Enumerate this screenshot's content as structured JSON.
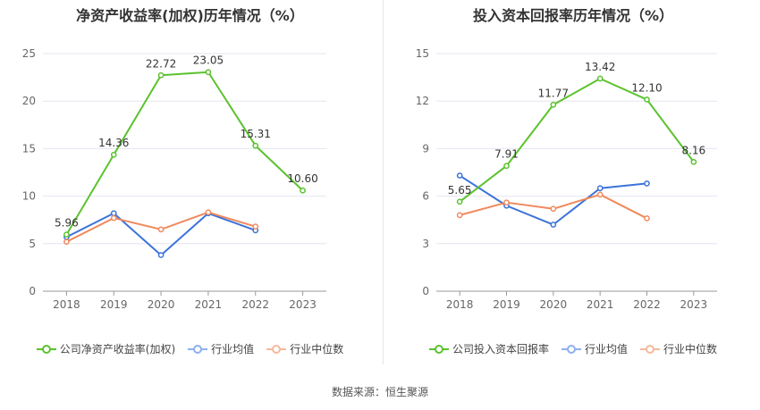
{
  "chart_data": [
    {
      "type": "line",
      "title": "净资产收益率(加权)历年情况（%）",
      "categories": [
        "2018",
        "2019",
        "2020",
        "2021",
        "2022",
        "2023"
      ],
      "ylim": [
        0,
        25
      ],
      "yticks": [
        0,
        5,
        10,
        15,
        20,
        25
      ],
      "grid": true,
      "legend_position": "bottom",
      "series": [
        {
          "name": "公司净资产收益率(加权)",
          "color": "#5bc22d",
          "values": [
            5.96,
            14.36,
            22.72,
            23.05,
            15.31,
            10.6
          ],
          "labels": [
            "5.96",
            "14.36",
            "22.72",
            "23.05",
            "15.31",
            "10.60"
          ]
        },
        {
          "name": "行业均值",
          "color": "#3b73d9",
          "values": [
            5.7,
            8.2,
            3.8,
            8.2,
            6.4,
            null
          ]
        },
        {
          "name": "行业中位数",
          "color": "#f08a5d",
          "values": [
            5.2,
            7.7,
            6.5,
            8.3,
            6.8,
            null
          ]
        }
      ]
    },
    {
      "type": "line",
      "title": "投入资本回报率历年情况（%）",
      "categories": [
        "2018",
        "2019",
        "2020",
        "2021",
        "2022",
        "2023"
      ],
      "ylim": [
        0,
        15
      ],
      "yticks": [
        0,
        3,
        6,
        9,
        12,
        15
      ],
      "grid": true,
      "legend_position": "bottom",
      "series": [
        {
          "name": "公司投入资本回报率",
          "color": "#5bc22d",
          "values": [
            5.65,
            7.91,
            11.77,
            13.42,
            12.1,
            8.16
          ],
          "labels": [
            "5.65",
            "7.91",
            "11.77",
            "13.42",
            "12.10",
            "8.16"
          ]
        },
        {
          "name": "行业均值",
          "color": "#3b73d9",
          "values": [
            7.3,
            5.4,
            4.2,
            6.5,
            6.8,
            null
          ]
        },
        {
          "name": "行业中位数",
          "color": "#f08a5d",
          "values": [
            4.8,
            5.6,
            5.2,
            6.1,
            4.6,
            null
          ]
        }
      ]
    }
  ],
  "source": "数据来源：恒生聚源"
}
